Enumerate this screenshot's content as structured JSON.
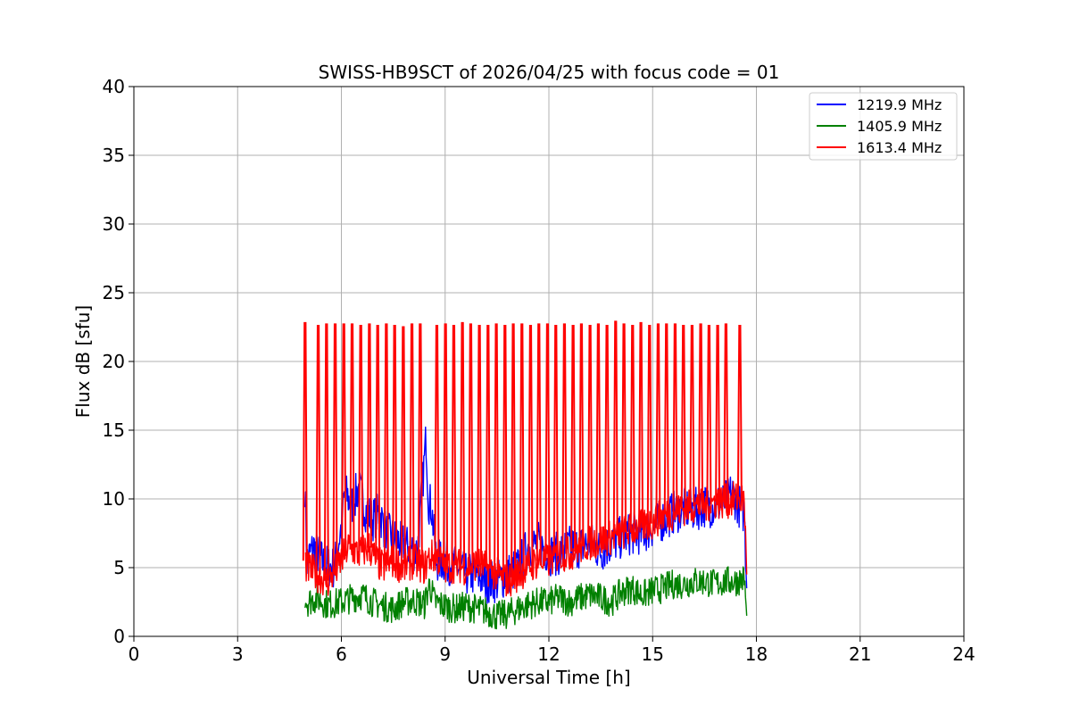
{
  "chart_data": {
    "type": "line",
    "title": "SWISS-HB9SCT of 2026/04/25 with focus code = 01",
    "xlabel": "Universal Time [h]",
    "ylabel": "Flux dB [sfu]",
    "xlim": [
      0,
      24
    ],
    "ylim": [
      0,
      40
    ],
    "x_ticks": [
      "0",
      "3",
      "6",
      "9",
      "12",
      "15",
      "18",
      "21",
      "24"
    ],
    "y_ticks": [
      "0",
      "5",
      "10",
      "15",
      "20",
      "25",
      "30",
      "35",
      "40"
    ],
    "grid": true,
    "legend_position": "top-right",
    "series": [
      {
        "name": "1219.9 MHz",
        "color": "#0000ff",
        "x": [
          4.95,
          5.0,
          5.2,
          5.5,
          5.8,
          6.0,
          6.1,
          6.3,
          6.5,
          6.7,
          6.9,
          7.1,
          7.3,
          7.6,
          7.9,
          8.2,
          8.45,
          8.52,
          8.6,
          8.75,
          9.0,
          9.3,
          9.6,
          9.9,
          10.2,
          10.5,
          10.8,
          11.1,
          11.4,
          11.7,
          12.0,
          12.3,
          12.6,
          12.9,
          13.2,
          13.5,
          13.8,
          14.1,
          14.4,
          14.7,
          15.0,
          15.3,
          15.6,
          15.9,
          16.2,
          16.5,
          16.8,
          17.1,
          17.3,
          17.5,
          17.65,
          17.72
        ],
        "values": [
          11,
          5.5,
          6.5,
          5.2,
          5.0,
          8.0,
          10.5,
          9.5,
          10.8,
          9.2,
          8.5,
          9.0,
          7.5,
          7.0,
          6.5,
          6.2,
          14.5,
          9.8,
          9.5,
          5.5,
          5.5,
          5.0,
          4.5,
          4.5,
          4.0,
          4.0,
          4.5,
          5.0,
          6.5,
          6.8,
          6.0,
          6.0,
          6.5,
          6.5,
          6.8,
          6.2,
          6.8,
          7.2,
          7.5,
          7.5,
          8.0,
          8.5,
          9.0,
          9.3,
          9.2,
          9.5,
          9.5,
          9.8,
          10.5,
          9.5,
          9.0,
          3.5
        ]
      },
      {
        "name": "1405.9 MHz",
        "color": "#008000",
        "x": [
          4.95,
          5.0,
          5.3,
          5.6,
          6.0,
          6.3,
          6.6,
          6.9,
          7.2,
          7.5,
          7.8,
          8.1,
          8.4,
          8.55,
          8.7,
          9.0,
          9.3,
          9.6,
          9.9,
          10.2,
          10.5,
          10.8,
          11.1,
          11.4,
          11.7,
          12.0,
          12.3,
          12.6,
          12.9,
          13.2,
          13.5,
          13.8,
          14.1,
          14.4,
          14.7,
          15.0,
          15.3,
          15.6,
          15.9,
          16.2,
          16.5,
          16.8,
          17.1,
          17.4,
          17.65,
          17.72
        ],
        "values": [
          3.0,
          2.5,
          2.8,
          2.3,
          2.5,
          2.8,
          3.0,
          2.5,
          2.2,
          2.0,
          2.5,
          2.6,
          2.3,
          3.8,
          2.5,
          2.2,
          2.0,
          2.2,
          2.0,
          1.8,
          1.5,
          1.6,
          2.0,
          2.3,
          2.5,
          2.5,
          2.8,
          2.5,
          2.8,
          3.0,
          2.8,
          2.5,
          3.2,
          3.5,
          3.0,
          3.3,
          3.5,
          3.8,
          3.8,
          4.0,
          4.0,
          3.8,
          4.0,
          4.0,
          4.2,
          1.5
        ]
      },
      {
        "name": "1613.4 MHz",
        "color": "#ff0000",
        "x": [
          4.95,
          5.0,
          5.3,
          5.6,
          5.9,
          6.2,
          6.5,
          6.8,
          7.0,
          7.2,
          7.5,
          7.8,
          8.1,
          8.4,
          8.55,
          8.75,
          9.0,
          9.3,
          9.6,
          9.9,
          10.2,
          10.5,
          10.8,
          11.1,
          11.4,
          11.7,
          12.0,
          12.3,
          12.6,
          12.9,
          13.2,
          13.5,
          13.8,
          14.1,
          14.4,
          14.7,
          15.0,
          15.3,
          15.6,
          15.9,
          16.2,
          16.5,
          16.8,
          17.1,
          17.4,
          17.65,
          17.72
        ],
        "values": [
          5.5,
          5.0,
          4.5,
          4.0,
          5.0,
          6.5,
          6.0,
          6.5,
          5.5,
          5.0,
          5.5,
          5.0,
          5.5,
          5.0,
          5.8,
          5.8,
          5.0,
          5.2,
          5.0,
          5.3,
          5.0,
          4.5,
          4.0,
          4.5,
          5.0,
          5.5,
          5.5,
          6.0,
          6.0,
          6.5,
          6.8,
          7.0,
          7.2,
          7.5,
          7.8,
          8.0,
          8.3,
          8.8,
          9.0,
          9.3,
          9.5,
          9.5,
          9.8,
          9.8,
          10.0,
          10.0,
          4.5
        ]
      }
    ],
    "spikes": {
      "series": "1613.4 MHz",
      "peak_values": [
        22.8,
        22.6,
        22.7,
        22.7,
        22.7,
        22.7,
        22.6,
        22.7,
        22.6,
        22.7,
        22.6,
        22.5,
        22.7,
        22.7,
        22.6,
        22.7,
        22.6,
        22.8,
        22.7,
        22.6,
        22.6,
        22.7,
        22.6,
        22.7,
        22.7,
        22.6,
        22.7,
        22.7,
        22.6,
        22.7,
        22.6,
        22.7,
        22.6,
        22.7,
        22.6,
        22.9,
        22.7,
        22.6,
        22.8,
        22.6,
        22.7,
        22.7,
        22.7,
        22.6,
        22.6,
        22.7,
        22.6,
        22.6,
        22.7,
        22.6
      ],
      "x": [
        4.95,
        5.33,
        5.57,
        5.82,
        6.07,
        6.31,
        6.56,
        6.81,
        7.05,
        7.3,
        7.54,
        7.79,
        8.04,
        8.28,
        8.76,
        9.01,
        9.25,
        9.5,
        9.74,
        9.99,
        10.24,
        10.48,
        10.73,
        10.97,
        11.22,
        11.47,
        11.71,
        11.96,
        12.2,
        12.45,
        12.7,
        12.94,
        13.19,
        13.43,
        13.68,
        13.93,
        14.17,
        14.42,
        14.66,
        14.91,
        15.16,
        15.4,
        15.65,
        15.89,
        16.14,
        16.39,
        16.63,
        16.88,
        17.12,
        17.52
      ]
    }
  }
}
